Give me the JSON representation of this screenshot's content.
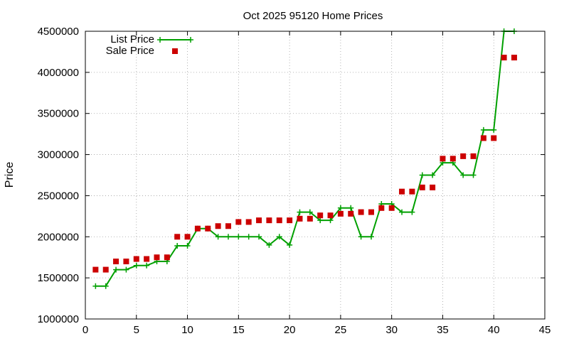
{
  "chart_data": {
    "type": "line",
    "title": "Oct 2025 95120 Home Prices",
    "xlabel": "",
    "ylabel": "Price",
    "xlim": [
      0,
      45
    ],
    "ylim": [
      1000000,
      4500000
    ],
    "x_ticks": [
      0,
      5,
      10,
      15,
      20,
      25,
      30,
      35,
      40,
      45
    ],
    "y_ticks": [
      1000000,
      1500000,
      2000000,
      2500000,
      3000000,
      3500000,
      4000000,
      4500000
    ],
    "grid": true,
    "legend_position": "top-left",
    "x": [
      1,
      2,
      3,
      4,
      5,
      6,
      7,
      8,
      9,
      10,
      11,
      12,
      13,
      14,
      15,
      16,
      17,
      18,
      19,
      20,
      21,
      22,
      23,
      24,
      25,
      26,
      27,
      28,
      29,
      30,
      31,
      32,
      33,
      34,
      35,
      36,
      37,
      38,
      39,
      40,
      41,
      42
    ],
    "series": [
      {
        "name": "List Price",
        "style": "linespoints",
        "color": "#00a000",
        "values": [
          1400000,
          1400000,
          1600000,
          1600000,
          1650000,
          1650000,
          1700000,
          1700000,
          1890000,
          1890000,
          2100000,
          2100000,
          2000000,
          2000000,
          2000000,
          2000000,
          2000000,
          1900000,
          2000000,
          1900000,
          2300000,
          2300000,
          2200000,
          2200000,
          2350000,
          2350000,
          2000000,
          2000000,
          2400000,
          2400000,
          2300000,
          2300000,
          2750000,
          2750000,
          2900000,
          2900000,
          2750000,
          2750000,
          3300000,
          3300000,
          4500000,
          4500000
        ]
      },
      {
        "name": "Sale Price",
        "style": "points",
        "color": "#cc0000",
        "values": [
          1600000,
          1600000,
          1700000,
          1700000,
          1730000,
          1730000,
          1750000,
          1750000,
          2000000,
          2000000,
          2100000,
          2100000,
          2130000,
          2130000,
          2180000,
          2180000,
          2200000,
          2200000,
          2200000,
          2200000,
          2220000,
          2220000,
          2260000,
          2260000,
          2280000,
          2280000,
          2300000,
          2300000,
          2350000,
          2350000,
          2550000,
          2550000,
          2600000,
          2600000,
          2950000,
          2950000,
          2980000,
          2980000,
          3200000,
          3200000,
          4180000,
          4180000
        ]
      }
    ]
  }
}
